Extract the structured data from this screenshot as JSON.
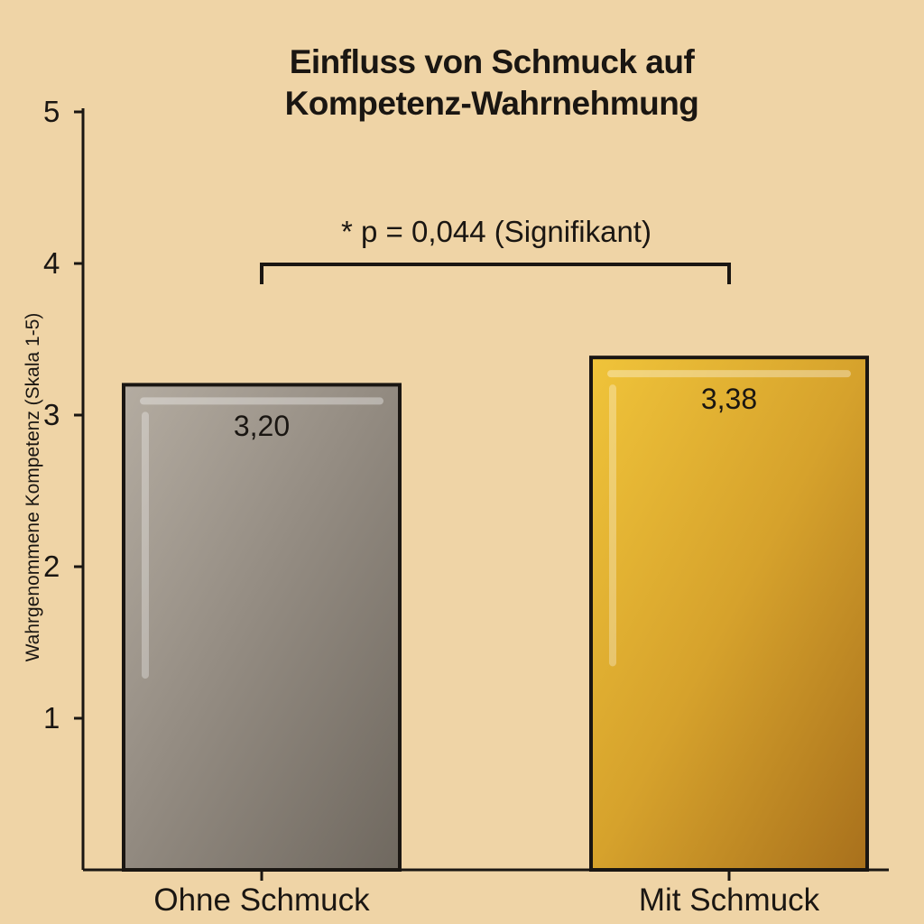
{
  "chart_data": {
    "type": "bar",
    "title_lines": [
      "Einfluss von Schmuck auf",
      "Kompetenz-Wahrnehmung"
    ],
    "xlabel": "",
    "ylabel": "Wahrgenommene Kompetenz (Skala 1-5)",
    "ylim": [
      0,
      5
    ],
    "yticks": [
      1,
      2,
      3,
      4,
      5
    ],
    "ytick_labels": [
      "1",
      "2",
      "3",
      "4",
      "5"
    ],
    "categories": [
      "Ohne Schmuck",
      "Mit Schmuck"
    ],
    "values": [
      3.2,
      3.38
    ],
    "value_labels": [
      "3,20",
      "3,38"
    ],
    "bar_colors": [
      "#8f877d",
      "#d1a02a"
    ],
    "annotation": "* p = 0,044 (Signifikant)",
    "grid": false,
    "legend": "none"
  }
}
